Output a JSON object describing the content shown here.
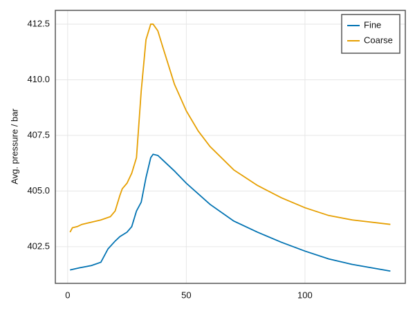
{
  "chart_data": {
    "type": "line",
    "y_label": "Avg. pressure / bar",
    "series": [
      {
        "name": "Fine",
        "color": "#0072b2",
        "x": [
          1,
          5,
          10,
          14,
          17,
          20,
          22,
          25,
          27,
          29,
          31,
          33,
          35,
          36,
          38,
          40,
          45,
          50,
          60,
          70,
          80,
          90,
          100,
          110,
          120,
          136
        ],
        "values": [
          401.45,
          401.55,
          401.65,
          401.8,
          402.4,
          402.75,
          402.95,
          403.15,
          403.4,
          404.1,
          404.5,
          405.6,
          406.5,
          406.65,
          406.6,
          406.4,
          405.9,
          405.35,
          404.4,
          403.65,
          403.15,
          402.7,
          402.3,
          401.95,
          401.7,
          401.4
        ]
      },
      {
        "name": "Coarse",
        "color": "#e69f00",
        "x": [
          1,
          2,
          4,
          6,
          10,
          14,
          18,
          20,
          22,
          23,
          25,
          27,
          29,
          31,
          33,
          35,
          36,
          38,
          40,
          45,
          50,
          55,
          60,
          70,
          80,
          90,
          100,
          110,
          120,
          136
        ],
        "values": [
          403.15,
          403.35,
          403.4,
          403.5,
          403.6,
          403.7,
          403.85,
          404.1,
          404.8,
          405.1,
          405.35,
          405.8,
          406.5,
          409.5,
          411.8,
          412.5,
          412.5,
          412.2,
          411.5,
          409.8,
          408.6,
          407.7,
          407.0,
          405.95,
          405.25,
          404.7,
          404.25,
          403.9,
          403.7,
          403.5
        ]
      }
    ],
    "xlim": [
      -5.2,
      142.3
    ],
    "xticks": [
      0,
      50,
      100
    ],
    "ylim": [
      400.85,
      413.12
    ],
    "yticks": [
      402.5,
      {
        "value": 405,
        "label": "405.0"
      },
      407.5,
      {
        "value": 410,
        "label": "410.0"
      },
      412.5
    ],
    "grid": true,
    "legend": "top-right"
  }
}
